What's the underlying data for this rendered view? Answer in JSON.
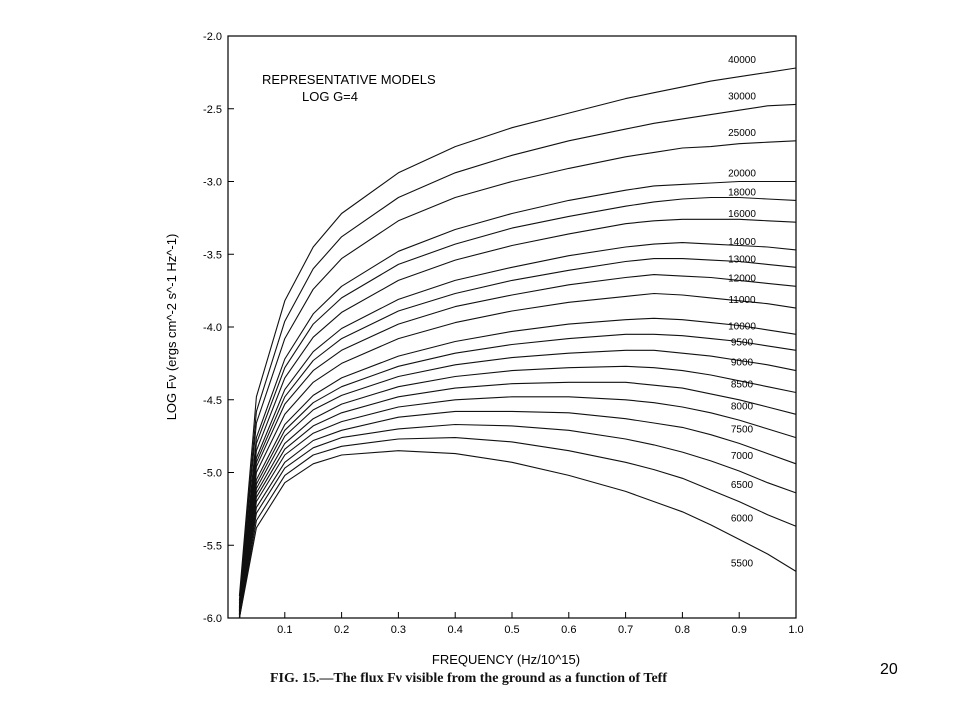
{
  "chart_data": {
    "type": "line",
    "title": "REPRESENTATIVE MODELS",
    "subtitle": "LOG G=4",
    "xlabel": "FREQUENCY (Hz/10^15)",
    "ylabel": "LOG Fν (ergs cm^-2 s^-1 Hz^-1)",
    "xlim": [
      0.0,
      1.0
    ],
    "ylim": [
      -6.0,
      -2.0
    ],
    "x_ticks": [
      0.1,
      0.2,
      0.3,
      0.4,
      0.5,
      0.6,
      0.7,
      0.8,
      0.9,
      1.0
    ],
    "x_tick_labels": [
      "0.1",
      "0.2",
      "0.3",
      "0.4",
      "0.5",
      "0.6",
      "0.7",
      "0.8",
      "0.9",
      "1.0"
    ],
    "y_ticks": [
      -6.0,
      -5.5,
      -5.0,
      -4.5,
      -4.0,
      -3.5,
      -3.0,
      -2.5,
      -2.0
    ],
    "y_tick_labels": [
      "-6.0",
      "-5.5",
      "-5.0",
      "-4.5",
      "-4.0",
      "-3.5",
      "-3.0",
      "-2.5",
      "-2.0"
    ],
    "grid": false,
    "line_color": "#111111",
    "x": [
      0.02,
      0.05,
      0.1,
      0.15,
      0.2,
      0.3,
      0.4,
      0.5,
      0.6,
      0.7,
      0.75,
      0.8,
      0.85,
      0.9,
      0.95,
      1.0
    ],
    "series": [
      {
        "name": "40000",
        "values": [
          -5.85,
          -4.48,
          -3.82,
          -3.45,
          -3.22,
          -2.94,
          -2.76,
          -2.63,
          -2.53,
          -2.43,
          -2.39,
          -2.35,
          -2.31,
          -2.28,
          -2.25,
          -2.22
        ]
      },
      {
        "name": "30000",
        "values": [
          -5.88,
          -4.58,
          -3.96,
          -3.6,
          -3.38,
          -3.11,
          -2.94,
          -2.82,
          -2.72,
          -2.64,
          -2.6,
          -2.57,
          -2.54,
          -2.51,
          -2.48,
          -2.47
        ]
      },
      {
        "name": "25000",
        "values": [
          -5.9,
          -4.66,
          -4.08,
          -3.74,
          -3.53,
          -3.27,
          -3.11,
          -3.0,
          -2.91,
          -2.83,
          -2.8,
          -2.77,
          -2.76,
          -2.74,
          -2.73,
          -2.72
        ]
      },
      {
        "name": "20000",
        "values": [
          -5.92,
          -4.76,
          -4.22,
          -3.91,
          -3.72,
          -3.48,
          -3.33,
          -3.22,
          -3.13,
          -3.06,
          -3.03,
          -3.02,
          -3.01,
          -3.0,
          -3.0,
          -3.0
        ]
      },
      {
        "name": "18000",
        "values": [
          -5.93,
          -4.8,
          -4.28,
          -3.98,
          -3.8,
          -3.57,
          -3.43,
          -3.32,
          -3.24,
          -3.17,
          -3.14,
          -3.12,
          -3.11,
          -3.11,
          -3.12,
          -3.13
        ]
      },
      {
        "name": "16000",
        "values": [
          -5.94,
          -4.85,
          -4.35,
          -4.07,
          -3.9,
          -3.68,
          -3.54,
          -3.44,
          -3.36,
          -3.29,
          -3.27,
          -3.26,
          -3.26,
          -3.26,
          -3.27,
          -3.28
        ]
      },
      {
        "name": "14000",
        "values": [
          -5.95,
          -4.9,
          -4.43,
          -4.17,
          -4.01,
          -3.81,
          -3.68,
          -3.59,
          -3.51,
          -3.45,
          -3.43,
          -3.42,
          -3.43,
          -3.44,
          -3.45,
          -3.47
        ]
      },
      {
        "name": "13000",
        "values": [
          -5.95,
          -4.93,
          -4.48,
          -4.23,
          -4.08,
          -3.89,
          -3.77,
          -3.68,
          -3.61,
          -3.55,
          -3.53,
          -3.53,
          -3.54,
          -3.55,
          -3.57,
          -3.59
        ]
      },
      {
        "name": "12000",
        "values": [
          -5.96,
          -4.96,
          -4.53,
          -4.3,
          -4.16,
          -3.98,
          -3.86,
          -3.78,
          -3.71,
          -3.66,
          -3.64,
          -3.65,
          -3.66,
          -3.68,
          -3.7,
          -3.72
        ]
      },
      {
        "name": "11000",
        "values": [
          -5.97,
          -5.0,
          -4.6,
          -4.38,
          -4.25,
          -4.08,
          -3.97,
          -3.89,
          -3.83,
          -3.79,
          -3.77,
          -3.78,
          -3.8,
          -3.82,
          -3.84,
          -3.87
        ]
      },
      {
        "name": "10000",
        "values": [
          -5.97,
          -5.05,
          -4.67,
          -4.47,
          -4.35,
          -4.2,
          -4.1,
          -4.03,
          -3.98,
          -3.95,
          -3.94,
          -3.95,
          -3.97,
          -3.99,
          -4.02,
          -4.05
        ]
      },
      {
        "name": "9500",
        "values": [
          -5.98,
          -5.08,
          -4.71,
          -4.52,
          -4.41,
          -4.27,
          -4.18,
          -4.12,
          -4.08,
          -4.05,
          -4.05,
          -4.06,
          -4.08,
          -4.1,
          -4.13,
          -4.16
        ]
      },
      {
        "name": "9000",
        "values": [
          -5.98,
          -5.11,
          -4.75,
          -4.57,
          -4.47,
          -4.34,
          -4.26,
          -4.21,
          -4.18,
          -4.16,
          -4.16,
          -4.18,
          -4.2,
          -4.23,
          -4.26,
          -4.3
        ]
      },
      {
        "name": "8500",
        "values": [
          -5.99,
          -5.14,
          -4.8,
          -4.63,
          -4.53,
          -4.41,
          -4.34,
          -4.3,
          -4.28,
          -4.27,
          -4.28,
          -4.3,
          -4.33,
          -4.37,
          -4.41,
          -4.45
        ]
      },
      {
        "name": "8000",
        "values": [
          -5.99,
          -5.17,
          -4.84,
          -4.68,
          -4.59,
          -4.48,
          -4.42,
          -4.39,
          -4.38,
          -4.38,
          -4.4,
          -4.42,
          -4.46,
          -4.5,
          -4.55,
          -4.6
        ]
      },
      {
        "name": "7500",
        "values": [
          -6.0,
          -5.2,
          -4.88,
          -4.73,
          -4.65,
          -4.55,
          -4.5,
          -4.48,
          -4.48,
          -4.5,
          -4.52,
          -4.55,
          -4.59,
          -4.64,
          -4.7,
          -4.76
        ]
      },
      {
        "name": "7000",
        "values": [
          -6.0,
          -5.24,
          -4.93,
          -4.78,
          -4.71,
          -4.62,
          -4.58,
          -4.58,
          -4.59,
          -4.63,
          -4.66,
          -4.69,
          -4.74,
          -4.8,
          -4.87,
          -4.94
        ]
      },
      {
        "name": "6500",
        "values": [
          -6.0,
          -5.28,
          -4.97,
          -4.83,
          -4.76,
          -4.7,
          -4.67,
          -4.68,
          -4.71,
          -4.77,
          -4.81,
          -4.86,
          -4.92,
          -4.99,
          -5.07,
          -5.14
        ]
      },
      {
        "name": "6000",
        "values": [
          -6.0,
          -5.33,
          -5.02,
          -4.88,
          -4.82,
          -4.77,
          -4.76,
          -4.79,
          -4.85,
          -4.93,
          -4.98,
          -5.04,
          -5.12,
          -5.2,
          -5.29,
          -5.37
        ]
      },
      {
        "name": "5500",
        "values": [
          -6.0,
          -5.38,
          -5.07,
          -4.94,
          -4.88,
          -4.85,
          -4.87,
          -4.93,
          -5.02,
          -5.13,
          -5.2,
          -5.27,
          -5.36,
          -5.46,
          -5.56,
          -5.68
        ]
      }
    ]
  },
  "caption": "FIG. 15.—The flux Fν visible from the ground as a function of Teff",
  "slide_number": "20"
}
